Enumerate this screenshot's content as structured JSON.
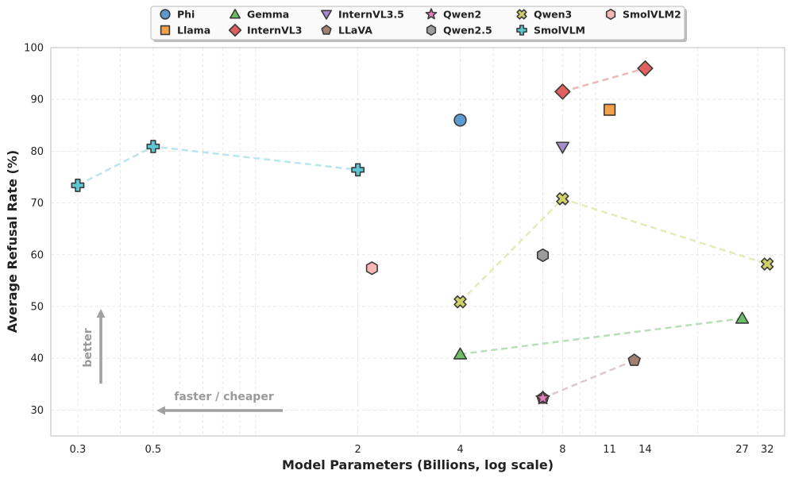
{
  "chart_data": {
    "type": "scatter",
    "title": "",
    "xlabel": "Model Parameters (Billions, log scale)",
    "ylabel": "Average Refusal Rate (%)",
    "xscale": "log",
    "xlim": [
      0.25,
      36
    ],
    "ylim": [
      25,
      100
    ],
    "x_ticks": [
      {
        "value": 0.3,
        "label": "0.3"
      },
      {
        "value": 0.5,
        "label": "0.5"
      },
      {
        "value": 2,
        "label": "2"
      },
      {
        "value": 4,
        "label": "4"
      },
      {
        "value": 8,
        "label": "8"
      },
      {
        "value": 11,
        "label": "11"
      },
      {
        "value": 14,
        "label": "14"
      },
      {
        "value": 27,
        "label": "27"
      },
      {
        "value": 32,
        "label": "32"
      }
    ],
    "y_ticks": [
      30,
      40,
      50,
      60,
      70,
      80,
      90,
      100
    ],
    "grid": true,
    "legend_position": "top-center",
    "series": [
      {
        "name": "Phi",
        "marker": "circle",
        "color": "#5b9bd0",
        "connected": false,
        "points": [
          {
            "x": 4,
            "y": 86
          }
        ]
      },
      {
        "name": "Llama",
        "marker": "square",
        "color": "#f4a04a",
        "connected": false,
        "points": [
          {
            "x": 11,
            "y": 88
          }
        ]
      },
      {
        "name": "Gemma",
        "marker": "triangle-up",
        "color": "#6dbf67",
        "connected": true,
        "line_color": "#b9dfb7",
        "points": [
          {
            "x": 4,
            "y": 40.8
          },
          {
            "x": 27,
            "y": 47.7
          }
        ]
      },
      {
        "name": "InternVL3",
        "marker": "diamond",
        "color": "#e0605f",
        "connected": true,
        "line_color": "#efb8b8",
        "points": [
          {
            "x": 8,
            "y": 91.5
          },
          {
            "x": 14,
            "y": 96
          }
        ]
      },
      {
        "name": "InternVL3.5",
        "marker": "triangle-down",
        "color": "#a58ccf",
        "connected": false,
        "points": [
          {
            "x": 8,
            "y": 80.8
          }
        ]
      },
      {
        "name": "LLaVA",
        "marker": "pentagon",
        "color": "#a37f74",
        "connected": true,
        "line_color": "#dcc9cf",
        "points": [
          {
            "x": 7,
            "y": 32.3
          },
          {
            "x": 13,
            "y": 39.6
          }
        ]
      },
      {
        "name": "Qwen2",
        "marker": "star",
        "color": "#e57fb8",
        "connected": false,
        "points": [
          {
            "x": 7,
            "y": 32.3
          }
        ]
      },
      {
        "name": "Qwen2.5",
        "marker": "hexagon",
        "color": "#9c9c9c",
        "connected": false,
        "points": [
          {
            "x": 7,
            "y": 59.9
          }
        ]
      },
      {
        "name": "Qwen3",
        "marker": "x-filled",
        "color": "#cfd069",
        "connected": true,
        "line_color": "#e6ebb6",
        "points": [
          {
            "x": 4,
            "y": 50.9
          },
          {
            "x": 8,
            "y": 70.8
          },
          {
            "x": 32,
            "y": 58.2
          }
        ]
      },
      {
        "name": "SmolVLM",
        "marker": "plus-filled",
        "color": "#5ec6d3",
        "connected": true,
        "line_color": "#b9e6ee",
        "points": [
          {
            "x": 0.3,
            "y": 73.4
          },
          {
            "x": 0.5,
            "y": 80.9
          },
          {
            "x": 2,
            "y": 76.4
          }
        ]
      },
      {
        "name": "SmolVLM2",
        "marker": "hexagon",
        "color": "#f7b7b6",
        "connected": false,
        "points": [
          {
            "x": 2.2,
            "y": 57.4
          }
        ]
      }
    ],
    "annotations": [
      {
        "text": "better",
        "direction": "up"
      },
      {
        "text": "faster / cheaper",
        "direction": "left"
      }
    ]
  }
}
